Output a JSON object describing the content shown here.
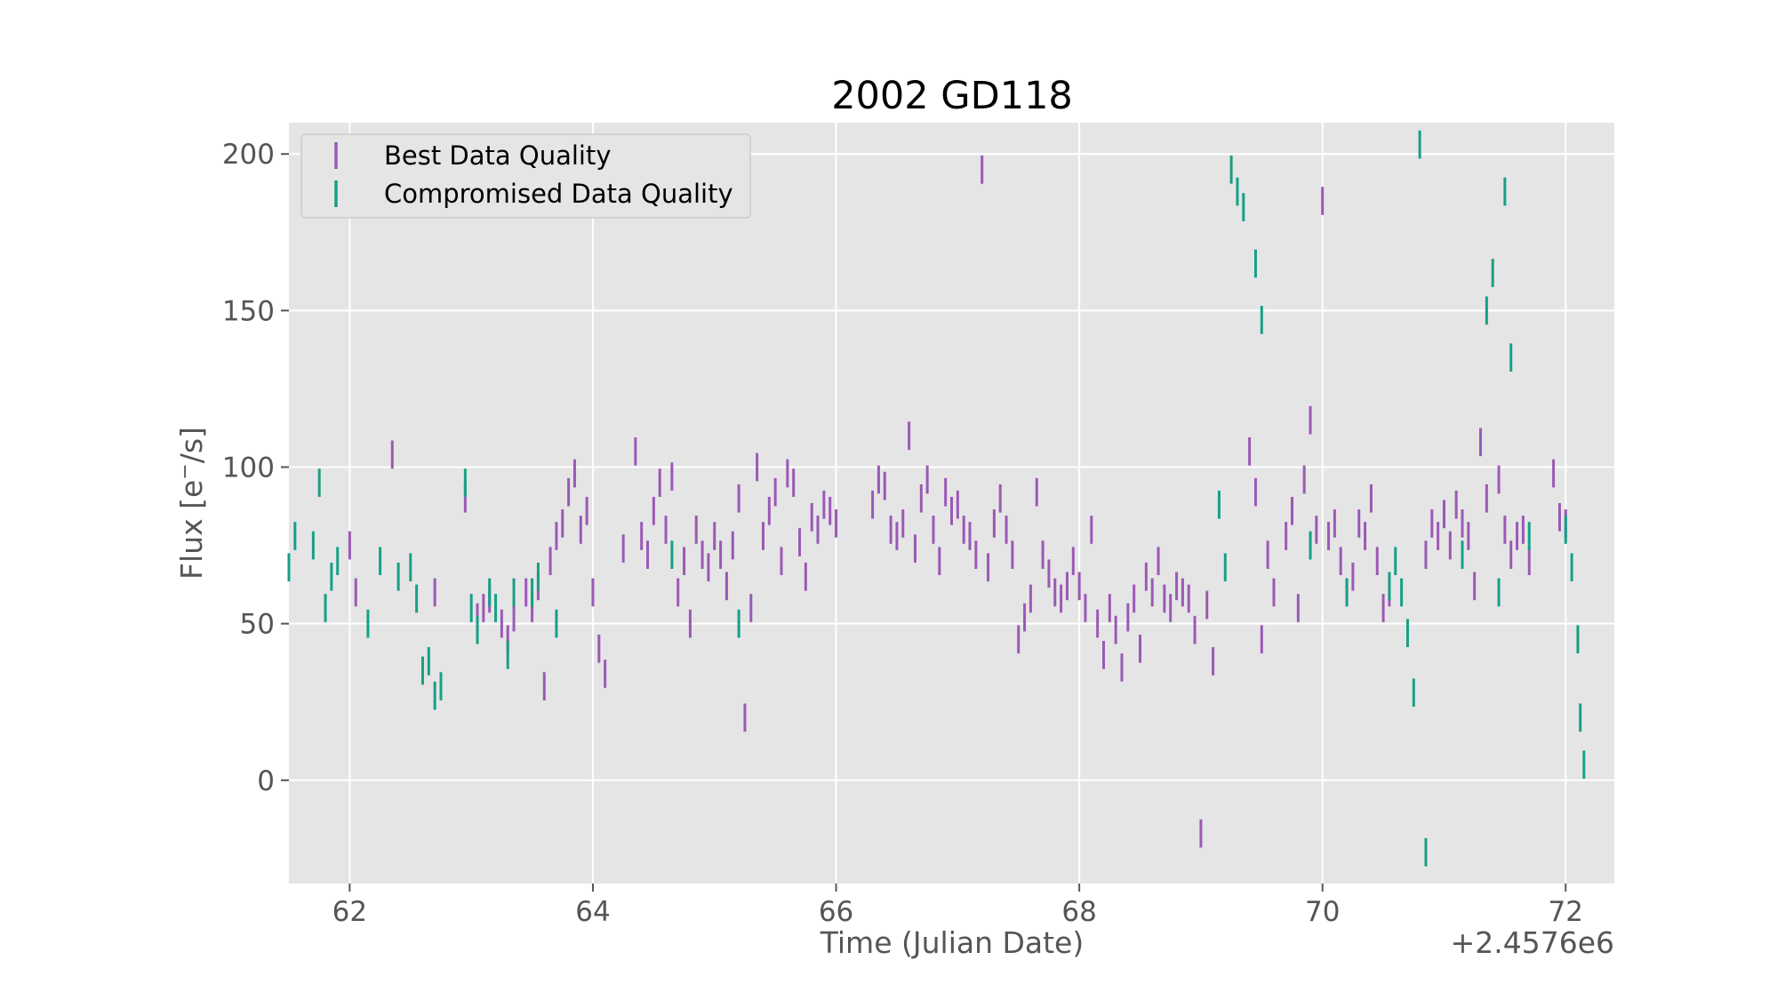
{
  "chart_data": {
    "type": "scatter",
    "title": "2002 GD118",
    "xlabel": "Time (Julian Date)",
    "ylabel": "Flux [e$^-$/s]",
    "x_offset_label": "+2.4576e6",
    "xlim": [
      61.5,
      72.4
    ],
    "ylim": [
      -33,
      210
    ],
    "xticks": [
      62,
      64,
      66,
      68,
      70,
      72
    ],
    "yticks": [
      0,
      50,
      100,
      150,
      200
    ],
    "grid": true,
    "background": "#e5e5e5",
    "legend": {
      "placement": "top-left"
    },
    "series": [
      {
        "name": "Best Data Quality",
        "color": "#9b59b6",
        "marker": "errorbar",
        "points": [
          [
            62.0,
            75
          ],
          [
            62.05,
            60
          ],
          [
            62.35,
            104
          ],
          [
            62.7,
            60
          ],
          [
            62.95,
            90
          ],
          [
            63.05,
            52
          ],
          [
            63.1,
            55
          ],
          [
            63.15,
            58
          ],
          [
            63.25,
            50
          ],
          [
            63.3,
            45
          ],
          [
            63.35,
            52
          ],
          [
            63.45,
            60
          ],
          [
            63.5,
            55
          ],
          [
            63.55,
            62
          ],
          [
            63.6,
            30
          ],
          [
            63.65,
            70
          ],
          [
            63.7,
            78
          ],
          [
            63.75,
            82
          ],
          [
            63.8,
            92
          ],
          [
            63.85,
            98
          ],
          [
            63.9,
            80
          ],
          [
            63.95,
            86
          ],
          [
            64.0,
            60
          ],
          [
            64.05,
            42
          ],
          [
            64.1,
            34
          ],
          [
            64.25,
            74
          ],
          [
            64.35,
            105
          ],
          [
            64.4,
            78
          ],
          [
            64.45,
            72
          ],
          [
            64.5,
            86
          ],
          [
            64.55,
            95
          ],
          [
            64.6,
            80
          ],
          [
            64.65,
            97
          ],
          [
            64.7,
            60
          ],
          [
            64.75,
            70
          ],
          [
            64.8,
            50
          ],
          [
            64.85,
            80
          ],
          [
            64.9,
            72
          ],
          [
            64.95,
            68
          ],
          [
            65.0,
            78
          ],
          [
            65.05,
            72
          ],
          [
            65.1,
            62
          ],
          [
            65.15,
            75
          ],
          [
            65.2,
            90
          ],
          [
            65.25,
            20
          ],
          [
            65.3,
            55
          ],
          [
            65.35,
            100
          ],
          [
            65.4,
            78
          ],
          [
            65.45,
            86
          ],
          [
            65.5,
            92
          ],
          [
            65.55,
            70
          ],
          [
            65.6,
            98
          ],
          [
            65.65,
            95
          ],
          [
            65.7,
            76
          ],
          [
            65.75,
            65
          ],
          [
            65.8,
            84
          ],
          [
            65.85,
            80
          ],
          [
            65.9,
            88
          ],
          [
            65.95,
            86
          ],
          [
            66.0,
            82
          ],
          [
            66.3,
            88
          ],
          [
            66.35,
            96
          ],
          [
            66.4,
            94
          ],
          [
            66.45,
            80
          ],
          [
            66.5,
            78
          ],
          [
            66.55,
            82
          ],
          [
            66.6,
            110
          ],
          [
            66.65,
            74
          ],
          [
            66.7,
            90
          ],
          [
            66.75,
            96
          ],
          [
            66.8,
            80
          ],
          [
            66.85,
            70
          ],
          [
            66.9,
            92
          ],
          [
            66.95,
            86
          ],
          [
            67.0,
            88
          ],
          [
            67.05,
            80
          ],
          [
            67.1,
            78
          ],
          [
            67.15,
            72
          ],
          [
            67.2,
            195
          ],
          [
            67.25,
            68
          ],
          [
            67.3,
            82
          ],
          [
            67.35,
            90
          ],
          [
            67.4,
            80
          ],
          [
            67.45,
            72
          ],
          [
            67.5,
            45
          ],
          [
            67.55,
            52
          ],
          [
            67.6,
            58
          ],
          [
            67.65,
            92
          ],
          [
            67.7,
            72
          ],
          [
            67.75,
            66
          ],
          [
            67.8,
            60
          ],
          [
            67.85,
            58
          ],
          [
            67.9,
            62
          ],
          [
            67.95,
            70
          ],
          [
            68.0,
            62
          ],
          [
            68.05,
            55
          ],
          [
            68.1,
            80
          ],
          [
            68.15,
            50
          ],
          [
            68.2,
            40
          ],
          [
            68.25,
            55
          ],
          [
            68.3,
            48
          ],
          [
            68.35,
            36
          ],
          [
            68.4,
            52
          ],
          [
            68.45,
            58
          ],
          [
            68.5,
            42
          ],
          [
            68.55,
            65
          ],
          [
            68.6,
            60
          ],
          [
            68.65,
            70
          ],
          [
            68.7,
            58
          ],
          [
            68.75,
            55
          ],
          [
            68.8,
            62
          ],
          [
            68.85,
            60
          ],
          [
            68.9,
            58
          ],
          [
            68.95,
            48
          ],
          [
            69.0,
            -17
          ],
          [
            69.05,
            56
          ],
          [
            69.1,
            38
          ],
          [
            69.4,
            105
          ],
          [
            69.45,
            92
          ],
          [
            69.5,
            45
          ],
          [
            69.55,
            72
          ],
          [
            69.6,
            60
          ],
          [
            69.7,
            78
          ],
          [
            69.75,
            86
          ],
          [
            69.8,
            55
          ],
          [
            69.85,
            96
          ],
          [
            69.9,
            115
          ],
          [
            69.95,
            80
          ],
          [
            70.0,
            185
          ],
          [
            70.05,
            78
          ],
          [
            70.1,
            82
          ],
          [
            70.15,
            70
          ],
          [
            70.2,
            60
          ],
          [
            70.25,
            65
          ],
          [
            70.3,
            82
          ],
          [
            70.35,
            78
          ],
          [
            70.4,
            90
          ],
          [
            70.45,
            70
          ],
          [
            70.5,
            55
          ],
          [
            70.55,
            60
          ],
          [
            70.85,
            72
          ],
          [
            70.9,
            82
          ],
          [
            70.95,
            78
          ],
          [
            71.0,
            85
          ],
          [
            71.05,
            75
          ],
          [
            71.1,
            88
          ],
          [
            71.15,
            82
          ],
          [
            71.2,
            78
          ],
          [
            71.25,
            62
          ],
          [
            71.3,
            108
          ],
          [
            71.35,
            90
          ],
          [
            71.45,
            96
          ],
          [
            71.5,
            80
          ],
          [
            71.55,
            72
          ],
          [
            71.6,
            78
          ],
          [
            71.65,
            80
          ],
          [
            71.7,
            70
          ],
          [
            71.9,
            98
          ],
          [
            71.95,
            84
          ],
          [
            72.0,
            82
          ]
        ]
      },
      {
        "name": "Compromised Data Quality",
        "color": "#16a085",
        "marker": "errorbar",
        "points": [
          [
            61.5,
            68
          ],
          [
            61.55,
            78
          ],
          [
            61.7,
            75
          ],
          [
            61.75,
            95
          ],
          [
            61.8,
            55
          ],
          [
            61.85,
            65
          ],
          [
            61.9,
            70
          ],
          [
            62.15,
            50
          ],
          [
            62.25,
            70
          ],
          [
            62.4,
            65
          ],
          [
            62.5,
            68
          ],
          [
            62.55,
            58
          ],
          [
            62.6,
            35
          ],
          [
            62.65,
            38
          ],
          [
            62.7,
            27
          ],
          [
            62.75,
            30
          ],
          [
            62.95,
            95
          ],
          [
            63.0,
            55
          ],
          [
            63.05,
            48
          ],
          [
            63.15,
            60
          ],
          [
            63.2,
            55
          ],
          [
            63.3,
            40
          ],
          [
            63.35,
            60
          ],
          [
            63.5,
            60
          ],
          [
            63.55,
            65
          ],
          [
            63.7,
            50
          ],
          [
            64.65,
            72
          ],
          [
            65.2,
            50
          ],
          [
            69.15,
            88
          ],
          [
            69.2,
            68
          ],
          [
            69.25,
            195
          ],
          [
            69.3,
            188
          ],
          [
            69.35,
            183
          ],
          [
            69.45,
            165
          ],
          [
            69.5,
            147
          ],
          [
            69.9,
            75
          ],
          [
            70.2,
            60
          ],
          [
            70.55,
            62
          ],
          [
            70.6,
            70
          ],
          [
            70.65,
            60
          ],
          [
            70.7,
            47
          ],
          [
            70.75,
            28
          ],
          [
            70.8,
            203
          ],
          [
            70.85,
            -23
          ],
          [
            71.15,
            72
          ],
          [
            71.35,
            150
          ],
          [
            71.4,
            162
          ],
          [
            71.45,
            60
          ],
          [
            71.5,
            188
          ],
          [
            71.55,
            135
          ],
          [
            71.7,
            78
          ],
          [
            72.0,
            80
          ],
          [
            72.05,
            68
          ],
          [
            72.1,
            45
          ],
          [
            72.12,
            20
          ],
          [
            72.15,
            5
          ]
        ]
      }
    ]
  }
}
